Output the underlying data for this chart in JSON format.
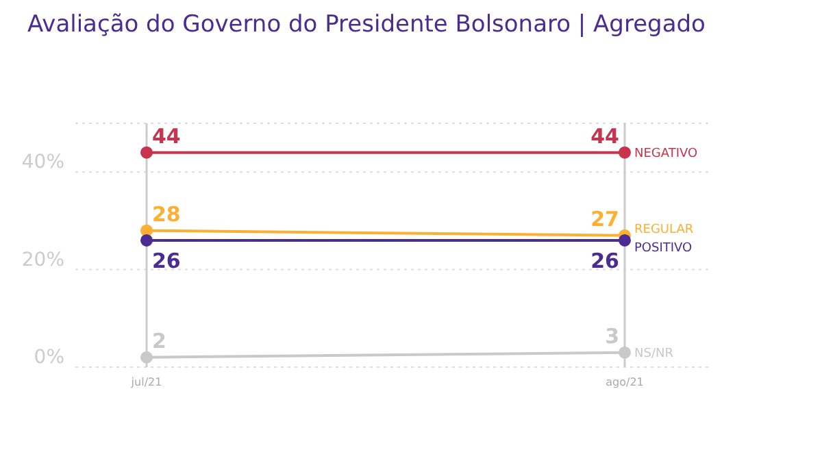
{
  "chart_data": {
    "type": "line",
    "title": "Avaliação do Governo do Presidente Bolsonaro | Agregado",
    "categories": [
      "jul/21",
      "ago/21"
    ],
    "series": [
      {
        "name": "NEGATIVO",
        "color": "#c8344e",
        "values": [
          44,
          44
        ]
      },
      {
        "name": "REGULAR",
        "color": "#fbb034",
        "values": [
          28,
          27
        ]
      },
      {
        "name": "POSITIVO",
        "color": "#4b2c92",
        "values": [
          26,
          26
        ]
      },
      {
        "name": "NS/NR",
        "color": "#c9c9c9",
        "values": [
          2,
          3
        ]
      }
    ],
    "ylim": [
      0,
      50
    ],
    "yticks": [
      {
        "value": 0,
        "label": "0%"
      },
      {
        "value": 20,
        "label": "20%"
      },
      {
        "value": 40,
        "label": "40%"
      }
    ],
    "ref_lines": [
      {
        "axis": "x",
        "value": "jul/21",
        "color": "#cccccc"
      },
      {
        "axis": "x",
        "value": "ago/21",
        "color": "#cccccc"
      }
    ],
    "grid": "y",
    "marker": "circle",
    "line_style": "solid",
    "data_labels": true
  }
}
